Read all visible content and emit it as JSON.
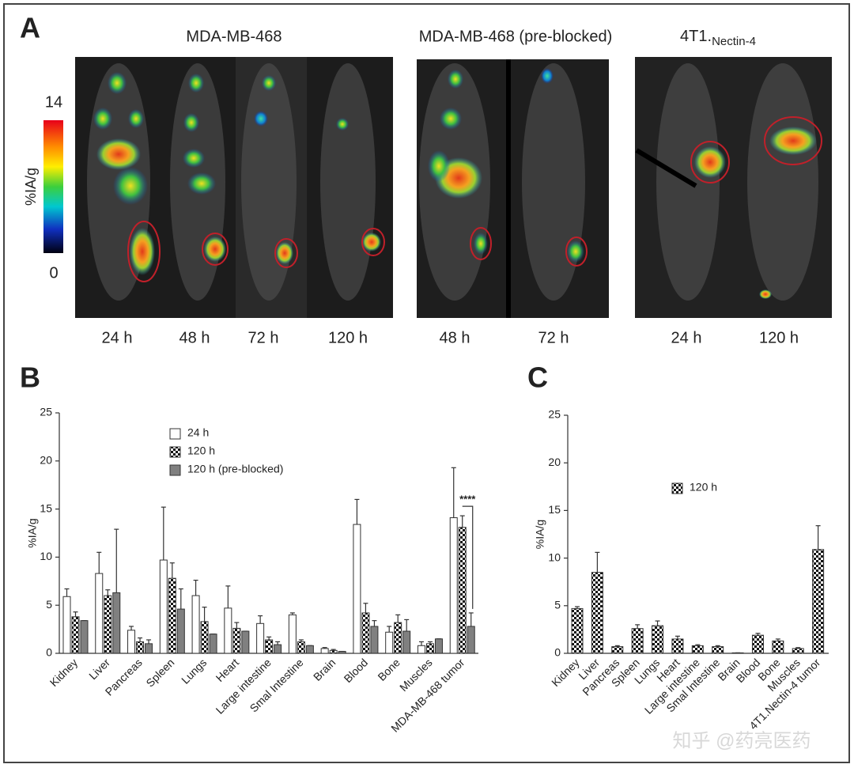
{
  "panel_labels": [
    "A",
    "B",
    "C"
  ],
  "imaging": {
    "groups": [
      {
        "title": "MDA-MB-468",
        "times": [
          "24 h",
          "48 h",
          "72 h",
          "120 h"
        ]
      },
      {
        "title": "MDA-MB-468 (pre-blocked)",
        "times": [
          "48 h",
          "72 h"
        ]
      },
      {
        "title": "4T1.",
        "subscript": "Nectin-4",
        "times": [
          "24 h",
          "120 h"
        ]
      }
    ],
    "colorbar": {
      "label": "%IA/g",
      "max": 14,
      "min": 0
    }
  },
  "watermark": "知乎 @药亮医药",
  "chart_data": [
    {
      "type": "bar",
      "ylabel": "%IA/g",
      "ylim": [
        0,
        25
      ],
      "yticks": [
        0,
        5,
        10,
        15,
        20,
        25
      ],
      "categories": [
        "Kidney",
        "Liver",
        "Pancreas",
        "Spleen",
        "Lungs",
        "Heart",
        "Large intestine",
        "Smal Intestine",
        "Brain",
        "Blood",
        "Bone",
        "Muscles",
        "MDA-MB-468 tumor"
      ],
      "series": [
        {
          "name": "24 h",
          "color": "#ffffff",
          "values": [
            5.9,
            8.3,
            2.4,
            9.7,
            6.0,
            4.7,
            3.1,
            4.0,
            0.5,
            13.4,
            2.2,
            0.8,
            14.1
          ],
          "errors": [
            0.8,
            2.2,
            0.4,
            5.5,
            1.6,
            2.3,
            0.8,
            0.2,
            0.1,
            2.6,
            0.6,
            0.4,
            5.2
          ]
        },
        {
          "name": "120 h",
          "color": "#000000",
          "pattern": "checker",
          "values": [
            3.8,
            6.0,
            1.2,
            7.8,
            3.3,
            2.6,
            1.4,
            1.2,
            0.3,
            4.2,
            3.2,
            1.0,
            13.1
          ],
          "errors": [
            0.5,
            0.6,
            0.4,
            1.6,
            1.5,
            0.6,
            0.3,
            0.2,
            0.1,
            1.0,
            0.8,
            0.2,
            1.2
          ]
        },
        {
          "name": "120 h (pre-blocked)",
          "color": "#808080",
          "values": [
            3.4,
            6.3,
            1.0,
            4.6,
            2.0,
            2.3,
            0.9,
            0.8,
            0.2,
            2.8,
            2.3,
            1.5,
            2.8
          ],
          "errors": [
            0,
            6.6,
            0.4,
            2.1,
            0,
            0,
            0.3,
            0,
            0,
            0.6,
            1.2,
            0,
            1.4
          ]
        }
      ],
      "annotation": "****"
    },
    {
      "type": "bar",
      "ylabel": "%IA/g",
      "ylim": [
        0,
        25
      ],
      "yticks": [
        0,
        5,
        10,
        15,
        20,
        25
      ],
      "categories": [
        "Kidney",
        "Liver",
        "Pancreas",
        "Spleen",
        "Lungs",
        "Heart",
        "Large intestine",
        "Smal Intestine",
        "Brain",
        "Blood",
        "Bone",
        "Muscles",
        "4T1.Nectin-4 tumor"
      ],
      "series": [
        {
          "name": "120 h",
          "color": "#000000",
          "pattern": "checker",
          "values": [
            4.7,
            8.5,
            0.7,
            2.6,
            2.9,
            1.5,
            0.8,
            0.7,
            0.05,
            1.9,
            1.3,
            0.5,
            10.9
          ],
          "errors": [
            0.2,
            2.1,
            0.1,
            0.4,
            0.5,
            0.3,
            0.1,
            0.1,
            0,
            0.2,
            0.2,
            0.1,
            2.5
          ]
        }
      ]
    }
  ]
}
